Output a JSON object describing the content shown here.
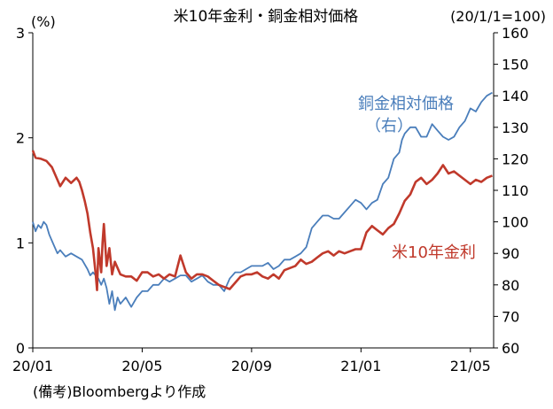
{
  "chart_data": {
    "type": "line",
    "title": "米10年金利・銅金相対価格",
    "right_axis_note": "(20/1/1=100)",
    "left_unit": "(%)",
    "source": "(備考)Bloombergより作成",
    "x_ticks": [
      {
        "t": 0,
        "label": "20/01"
      },
      {
        "t": 4,
        "label": "20/05"
      },
      {
        "t": 8,
        "label": "20/09"
      },
      {
        "t": 12,
        "label": "21/01"
      },
      {
        "t": 16,
        "label": "21/05"
      }
    ],
    "xlim": [
      0,
      16.85
    ],
    "y_left": {
      "ylim": [
        0,
        3
      ],
      "ticks": [
        "0",
        "1",
        "2",
        "3"
      ]
    },
    "y_right": {
      "ylim": [
        60,
        160
      ],
      "ticks": [
        "60",
        "70",
        "80",
        "90",
        "100",
        "110",
        "120",
        "130",
        "140",
        "150",
        "160"
      ]
    },
    "grid": false,
    "series": [
      {
        "name": "米10年金利",
        "axis": "left",
        "color": "#c0392b",
        "x": [
          0,
          0.1,
          0.3,
          0.5,
          0.7,
          0.9,
          1.0,
          1.2,
          1.4,
          1.6,
          1.7,
          1.8,
          1.9,
          2.0,
          2.1,
          2.2,
          2.3,
          2.35,
          2.4,
          2.5,
          2.55,
          2.6,
          2.7,
          2.8,
          2.9,
          3.0,
          3.2,
          3.4,
          3.6,
          3.8,
          4.0,
          4.2,
          4.4,
          4.6,
          4.8,
          5.0,
          5.2,
          5.4,
          5.6,
          5.8,
          6.0,
          6.2,
          6.4,
          6.6,
          6.8,
          7.0,
          7.2,
          7.4,
          7.6,
          7.8,
          8.0,
          8.2,
          8.4,
          8.6,
          8.8,
          9.0,
          9.2,
          9.4,
          9.6,
          9.8,
          10.0,
          10.2,
          10.4,
          10.6,
          10.8,
          11.0,
          11.2,
          11.4,
          11.6,
          11.8,
          12.0,
          12.2,
          12.4,
          12.6,
          12.8,
          13.0,
          13.2,
          13.4,
          13.6,
          13.8,
          14.0,
          14.2,
          14.4,
          14.6,
          14.8,
          15.0,
          15.2,
          15.4,
          15.6,
          15.8,
          16.0,
          16.2,
          16.4,
          16.6,
          16.8
        ],
        "values": [
          1.88,
          1.81,
          1.8,
          1.78,
          1.72,
          1.6,
          1.54,
          1.62,
          1.57,
          1.62,
          1.58,
          1.5,
          1.4,
          1.28,
          1.1,
          0.95,
          0.7,
          0.55,
          0.95,
          0.72,
          1.0,
          1.18,
          0.78,
          0.95,
          0.7,
          0.82,
          0.7,
          0.68,
          0.68,
          0.64,
          0.72,
          0.72,
          0.68,
          0.7,
          0.66,
          0.7,
          0.68,
          0.88,
          0.72,
          0.66,
          0.7,
          0.7,
          0.68,
          0.64,
          0.6,
          0.58,
          0.56,
          0.62,
          0.68,
          0.7,
          0.7,
          0.72,
          0.68,
          0.66,
          0.7,
          0.66,
          0.74,
          0.76,
          0.78,
          0.84,
          0.8,
          0.82,
          0.86,
          0.9,
          0.92,
          0.88,
          0.92,
          0.9,
          0.92,
          0.94,
          0.94,
          1.1,
          1.16,
          1.12,
          1.08,
          1.14,
          1.18,
          1.28,
          1.4,
          1.46,
          1.58,
          1.62,
          1.56,
          1.6,
          1.66,
          1.74,
          1.66,
          1.68,
          1.64,
          1.6,
          1.56,
          1.6,
          1.58,
          1.62,
          1.64
        ]
      },
      {
        "name": "銅金相対価格",
        "axis": "right",
        "color": "#4a7ebb",
        "x": [
          0,
          0.1,
          0.2,
          0.3,
          0.4,
          0.5,
          0.6,
          0.7,
          0.8,
          0.9,
          1.0,
          1.2,
          1.4,
          1.6,
          1.8,
          2.0,
          2.1,
          2.2,
          2.4,
          2.5,
          2.6,
          2.7,
          2.8,
          2.9,
          3.0,
          3.1,
          3.2,
          3.4,
          3.6,
          3.8,
          4.0,
          4.2,
          4.4,
          4.6,
          4.8,
          5.0,
          5.2,
          5.4,
          5.6,
          5.8,
          6.0,
          6.2,
          6.4,
          6.6,
          6.8,
          7.0,
          7.2,
          7.4,
          7.6,
          7.8,
          8.0,
          8.2,
          8.4,
          8.6,
          8.8,
          9.0,
          9.2,
          9.4,
          9.6,
          9.8,
          10.0,
          10.2,
          10.4,
          10.6,
          10.8,
          11.0,
          11.2,
          11.4,
          11.6,
          11.8,
          12.0,
          12.2,
          12.4,
          12.6,
          12.8,
          13.0,
          13.2,
          13.4,
          13.5,
          13.6,
          13.8,
          14.0,
          14.2,
          14.4,
          14.6,
          14.8,
          15.0,
          15.2,
          15.4,
          15.6,
          15.8,
          16.0,
          16.2,
          16.4,
          16.6,
          16.8
        ],
        "values": [
          100,
          97,
          99,
          98,
          100,
          99,
          96,
          94,
          92,
          90,
          91,
          89,
          90,
          89,
          88,
          85,
          83,
          84,
          82,
          80,
          82,
          79,
          74,
          78,
          72,
          76,
          74,
          76,
          73,
          76,
          78,
          78,
          80,
          80,
          82,
          81,
          82,
          83,
          83,
          81,
          82,
          83,
          81,
          80,
          80,
          78,
          82,
          84,
          84,
          85,
          86,
          86,
          86,
          87,
          85,
          86,
          88,
          88,
          89,
          90,
          92,
          98,
          100,
          102,
          102,
          101,
          101,
          103,
          105,
          107,
          106,
          104,
          106,
          107,
          112,
          114,
          120,
          122,
          126,
          128,
          130,
          130,
          127,
          127,
          131,
          129,
          127,
          126,
          127,
          130,
          132,
          136,
          135,
          138,
          140,
          141
        ]
      }
    ],
    "labels": {
      "copper_gold_name": "銅金相対価格",
      "copper_gold_axis": "（右）",
      "yield_name": "米10年金利"
    }
  }
}
